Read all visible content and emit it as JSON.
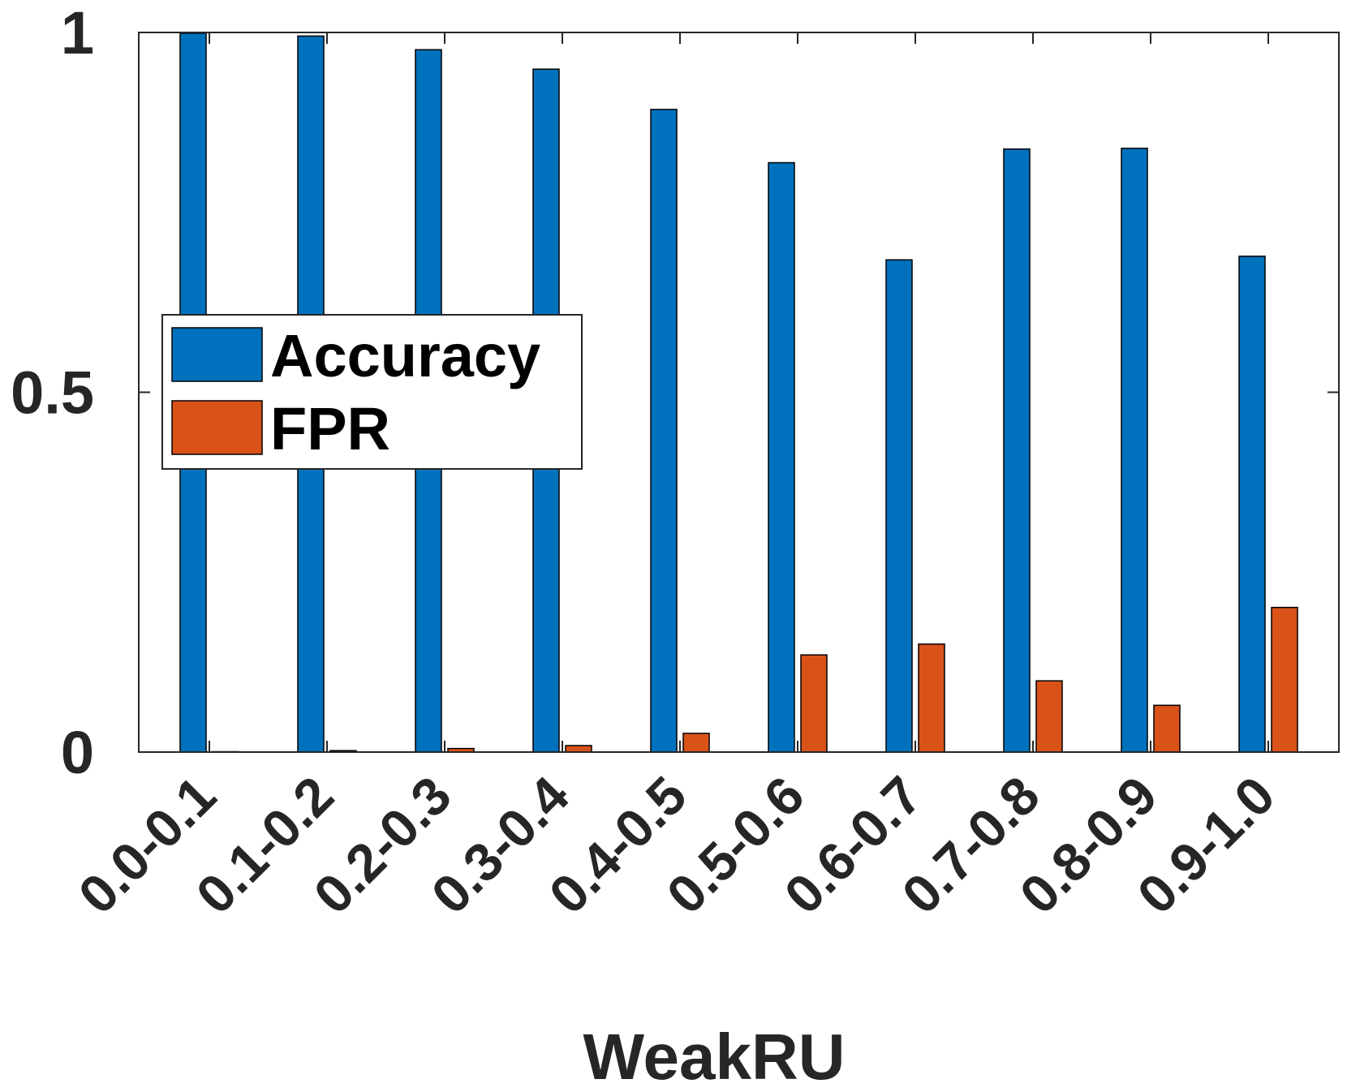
{
  "chart_data": {
    "type": "bar",
    "categories": [
      "0.0-0.1",
      "0.1-0.2",
      "0.2-0.3",
      "0.3-0.4",
      "0.4-0.5",
      "0.5-0.6",
      "0.6-0.7",
      "0.7-0.8",
      "0.8-0.9",
      "0.9-1.0"
    ],
    "series": [
      {
        "name": "Accuracy",
        "color": "#0072bd",
        "values": [
          0.999,
          0.995,
          0.976,
          0.949,
          0.893,
          0.819,
          0.684,
          0.838,
          0.839,
          0.689
        ]
      },
      {
        "name": "FPR",
        "color": "#d95319",
        "values": [
          0.0,
          0.002,
          0.005,
          0.009,
          0.026,
          0.135,
          0.15,
          0.099,
          0.065,
          0.201
        ]
      }
    ],
    "title": "",
    "xlabel": "WeakRU",
    "ylabel": "",
    "ylim": [
      0,
      1
    ],
    "yticks": [
      0,
      0.5,
      1
    ],
    "ytick_labels": [
      "0",
      "0.5",
      "1"
    ],
    "grid": false,
    "legend_position": "left-middle"
  }
}
